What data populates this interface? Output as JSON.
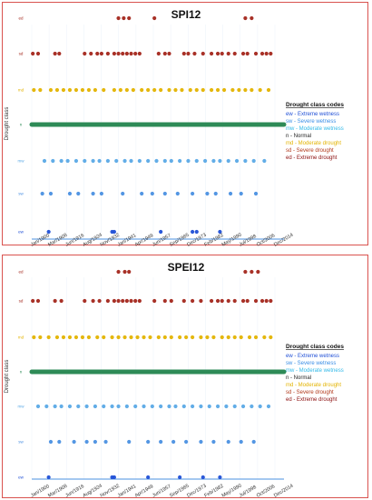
{
  "chart_data": [
    {
      "type": "scatter",
      "title": "SPI12",
      "ylabel": "Drought class",
      "categories": [
        "ew",
        "sw",
        "mw",
        "n",
        "md",
        "sd",
        "ed"
      ],
      "x_labels": [
        "Jan/1900",
        "Mar/1908",
        "Jun/1916",
        "Aug/1924",
        "Nov/1932",
        "Jan/1941",
        "Apr/1949",
        "Jun/1957",
        "Sep/1965",
        "Dec/1973",
        "Feb/1982",
        "May/1990",
        "Jul/1998",
        "Oct/2006",
        "Dec/2014"
      ],
      "xlim": [
        1900,
        2015
      ],
      "legend": {
        "title": "Drought class codes",
        "position": "right",
        "items": [
          {
            "text": "ew - Extreme wetness",
            "color": "#1f4fd6"
          },
          {
            "text": "sw - Severe wetness",
            "color": "#3a8ee6"
          },
          {
            "text": "mw - Moderate wetness",
            "color": "#32b9e8"
          },
          {
            "text": "n - Normal",
            "color": "#1e1e1e"
          },
          {
            "text": "md - Moderate drought",
            "color": "#e3b300"
          },
          {
            "text": "sd - Severe drought",
            "color": "#b23a1c"
          },
          {
            "text": "ed - Extreme drought",
            "color": "#8b0d0d"
          }
        ]
      },
      "series": [
        {
          "category": "ed",
          "x": [
            1941,
            1943.5,
            1946,
            1958,
            2001,
            2004
          ]
        },
        {
          "category": "sd",
          "x": [
            1900.5,
            1903,
            1911,
            1913,
            1925,
            1928,
            1931,
            1933,
            1936,
            1939,
            1941,
            1943,
            1945,
            1947,
            1949,
            1951,
            1960,
            1963,
            1965,
            1972,
            1974,
            1977,
            1981,
            1985,
            1988,
            1990,
            1993,
            1996,
            2000,
            2002,
            2006,
            2009,
            2011,
            2013
          ]
        },
        {
          "category": "md",
          "x": [
            1901,
            1904,
            1909,
            1912,
            1915,
            1918,
            1921,
            1924,
            1927,
            1930,
            1934,
            1939,
            1942,
            1945,
            1948,
            1952,
            1955,
            1958,
            1961,
            1965,
            1968,
            1971,
            1975,
            1978,
            1981,
            1985,
            1988,
            1991,
            1995,
            1998,
            2001,
            2004,
            2008,
            2012
          ]
        },
        {
          "category": "mw",
          "x": [
            1906,
            1910,
            1914,
            1917,
            1921,
            1925,
            1929,
            1932,
            1936,
            1940,
            1944,
            1947,
            1951,
            1955,
            1959,
            1963,
            1966,
            1970,
            1974,
            1978,
            1982,
            1986,
            1989,
            1993,
            1997,
            2001,
            2005,
            2010
          ]
        },
        {
          "category": "sw",
          "x": [
            1905,
            1909,
            1918,
            1922,
            1929,
            1933,
            1943,
            1952,
            1957,
            1963,
            1969,
            1976,
            1983,
            1987,
            1994,
            1999,
            2006
          ]
        },
        {
          "category": "ew",
          "x": [
            1908,
            1938,
            1939,
            1961,
            1976,
            1978,
            1989
          ]
        }
      ]
    },
    {
      "type": "scatter",
      "title": "SPEI12",
      "ylabel": "Drought class",
      "categories": [
        "ew",
        "sw",
        "mw",
        "n",
        "md",
        "sd",
        "ed"
      ],
      "x_labels": [
        "Jan/1900",
        "Mar/1908",
        "Jun/1916",
        "Aug/1924",
        "Nov/1932",
        "Jan/1941",
        "Apr/1949",
        "Jun/1957",
        "Sep/1965",
        "Dec/1973",
        "Feb/1982",
        "May/1990",
        "Jul/1998",
        "Oct/2006",
        "Dec/2014"
      ],
      "xlim": [
        1900,
        2015
      ],
      "legend": {
        "title": "Drought class codes",
        "position": "right",
        "items": [
          {
            "text": "ew - Extreme wetness",
            "color": "#1f4fd6"
          },
          {
            "text": "sw - Severe wetness",
            "color": "#3a8ee6"
          },
          {
            "text": "mw - Moderate wetness",
            "color": "#32b9e8"
          },
          {
            "text": "n - Normal",
            "color": "#1e1e1e"
          },
          {
            "text": "md - Moderate drought",
            "color": "#e3b300"
          },
          {
            "text": "sd - Severe drought",
            "color": "#b23a1c"
          },
          {
            "text": "ed - Extreme drought",
            "color": "#8b0d0d"
          }
        ]
      },
      "series": [
        {
          "category": "ed",
          "x": [
            1941,
            1944,
            1946,
            2001,
            2004,
            2007
          ]
        },
        {
          "category": "sd",
          "x": [
            1900.5,
            1903,
            1911,
            1914,
            1925,
            1929,
            1932,
            1936,
            1939,
            1941,
            1943,
            1945,
            1947,
            1949,
            1951,
            1958,
            1963,
            1966,
            1972,
            1976,
            1980,
            1985,
            1988,
            1990,
            1993,
            1996,
            2000,
            2002,
            2006,
            2009,
            2011,
            2013
          ]
        },
        {
          "category": "md",
          "x": [
            1901,
            1904,
            1908,
            1912,
            1915,
            1918,
            1921,
            1924,
            1927,
            1931,
            1934,
            1938,
            1941,
            1944,
            1947,
            1950,
            1953,
            1956,
            1960,
            1963,
            1966,
            1970,
            1973,
            1976,
            1980,
            1983,
            1986,
            1990,
            1993,
            1996,
            1999,
            2003,
            2006,
            2010,
            2013
          ]
        },
        {
          "category": "mw",
          "x": [
            1903,
            1907,
            1911,
            1914,
            1918,
            1922,
            1926,
            1930,
            1934,
            1938,
            1941,
            1945,
            1949,
            1953,
            1957,
            1961,
            1965,
            1968,
            1972,
            1976,
            1980,
            1984,
            1988,
            1992,
            1996,
            2000,
            2004,
            2008,
            2012
          ]
        },
        {
          "category": "sw",
          "x": [
            1909,
            1913,
            1920,
            1926,
            1930,
            1935,
            1946,
            1955,
            1961,
            1967,
            1973,
            1980,
            1986,
            1993,
            1999,
            2005
          ]
        },
        {
          "category": "ew",
          "x": [
            1908,
            1938,
            1939,
            1955,
            1970,
            1981,
            1989
          ]
        }
      ]
    }
  ],
  "colors": {
    "ew": "#1f4fd6",
    "sw": "#4a90e2",
    "mw": "#5aa9e6",
    "n": "#2e8b57",
    "md": "#e3b300",
    "sd": "#a3261b",
    "ed": "#a3261b"
  }
}
